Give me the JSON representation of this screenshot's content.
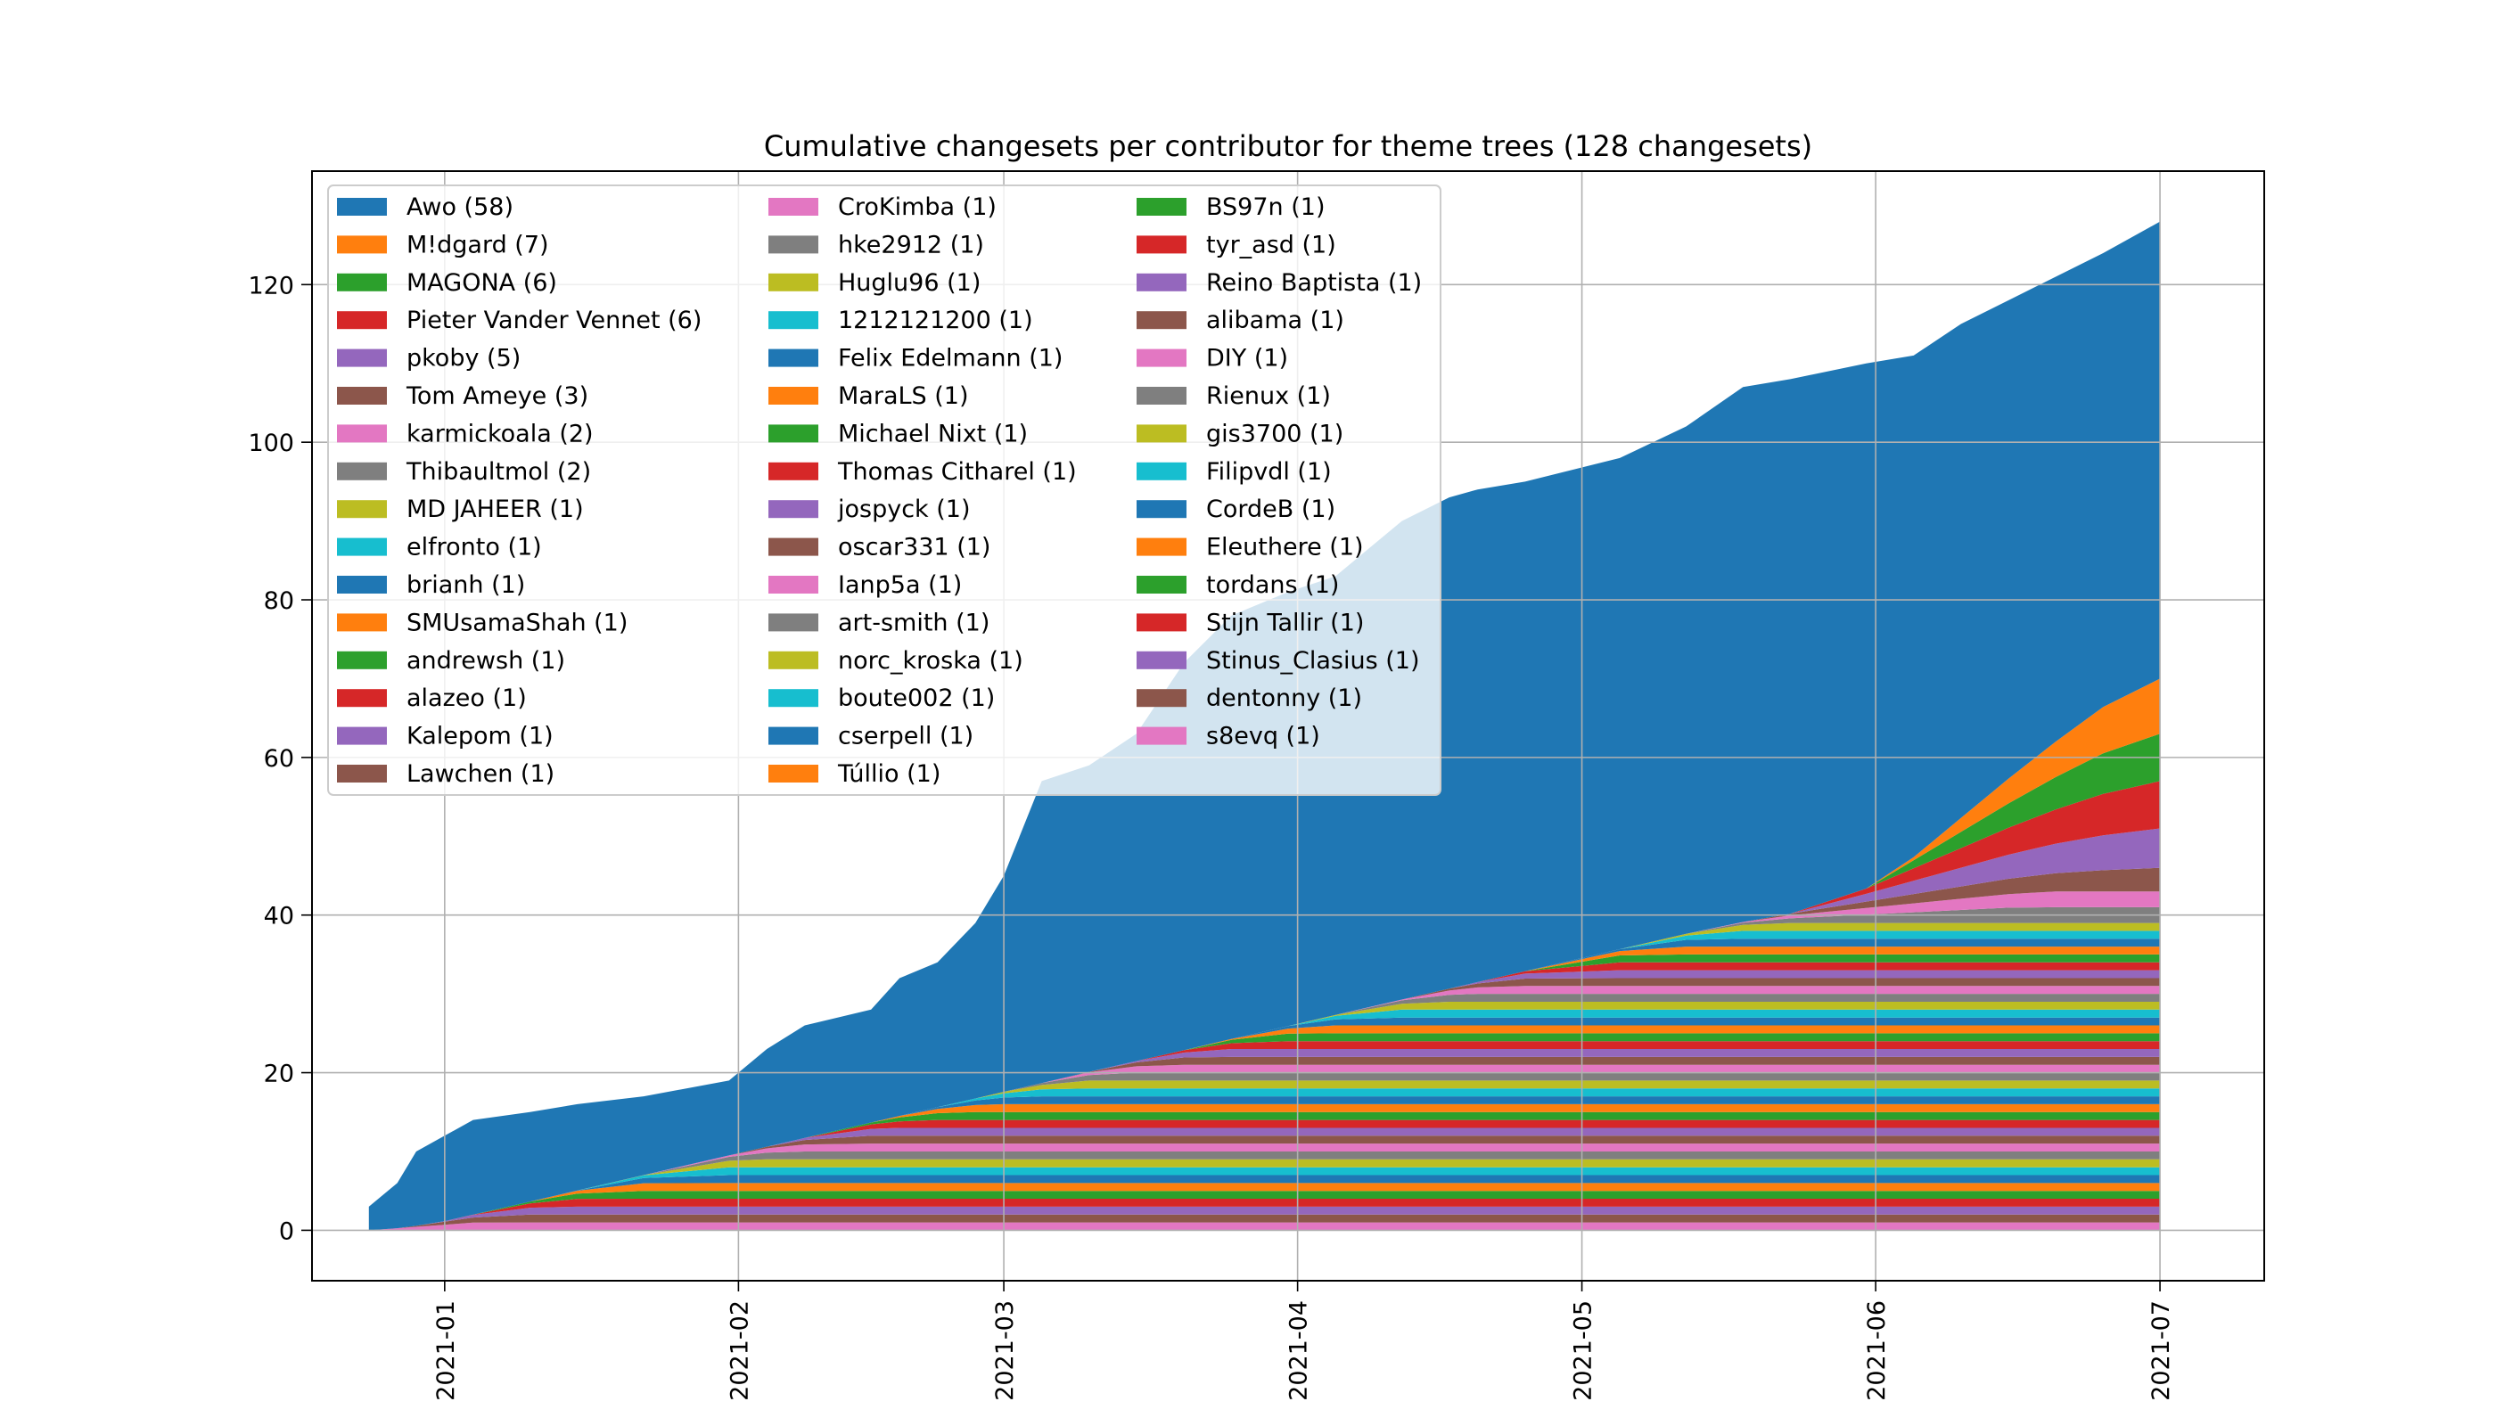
{
  "chart_data": {
    "type": "area",
    "stacked": true,
    "title": "Cumulative changesets per contributor for theme trees (128 changesets)",
    "xlabel": "",
    "ylabel": "",
    "x_range": [
      "2020-12-18",
      "2021-07-12"
    ],
    "ylim": [
      -6.4,
      134.4
    ],
    "x_ticks": [
      "2021-01",
      "2021-02",
      "2021-03",
      "2021-04",
      "2021-05",
      "2021-06",
      "2021-07"
    ],
    "y_ticks": [
      0,
      20,
      40,
      60,
      80,
      100,
      120
    ],
    "grid": true,
    "legend_position": "top-left",
    "legend_columns": 3,
    "x": [
      "2020-12-24",
      "2020-12-27",
      "2020-12-29",
      "2021-01-01",
      "2021-01-04",
      "2021-01-10",
      "2021-01-15",
      "2021-01-22",
      "2021-01-31",
      "2021-02-04",
      "2021-02-08",
      "2021-02-15",
      "2021-02-18",
      "2021-02-22",
      "2021-02-26",
      "2021-03-01",
      "2021-03-05",
      "2021-03-10",
      "2021-03-15",
      "2021-03-20",
      "2021-03-25",
      "2021-03-31",
      "2021-04-05",
      "2021-04-12",
      "2021-04-17",
      "2021-04-20",
      "2021-04-25",
      "2021-05-05",
      "2021-05-12",
      "2021-05-18",
      "2021-05-23",
      "2021-05-31",
      "2021-06-05",
      "2021-06-10",
      "2021-06-15",
      "2021-06-20",
      "2021-06-25",
      "2021-07-01"
    ],
    "top_series": {
      "name": "Awo (58)",
      "color": "#1f77b4",
      "cumulative_total": [
        3,
        6,
        10,
        12,
        14,
        15,
        16,
        17,
        19,
        23,
        26,
        28,
        32,
        34,
        39,
        45,
        57,
        59,
        63,
        72,
        78,
        81,
        83,
        90,
        93,
        94,
        95,
        98,
        102,
        107,
        108,
        110,
        111,
        115,
        118,
        121,
        124,
        128
      ]
    },
    "series": [
      {
        "name": "Awo (58)",
        "color": "#1f77b4"
      },
      {
        "name": "M!dgard (7)",
        "color": "#ff7f0e"
      },
      {
        "name": "MAGONA (6)",
        "color": "#2ca02c"
      },
      {
        "name": "Pieter Vander Vennet (6)",
        "color": "#d62728"
      },
      {
        "name": "pkoby (5)",
        "color": "#9467bd"
      },
      {
        "name": "Tom Ameye (3)",
        "color": "#8c564b"
      },
      {
        "name": "karmickoala (2)",
        "color": "#e377c2"
      },
      {
        "name": "Thibaultmol (2)",
        "color": "#7f7f7f"
      },
      {
        "name": "MD JAHEER (1)",
        "color": "#bcbd22"
      },
      {
        "name": "elfronto (1)",
        "color": "#17becf"
      },
      {
        "name": "brianh (1)",
        "color": "#1f77b4"
      },
      {
        "name": "SMUsamaShah (1)",
        "color": "#ff7f0e"
      },
      {
        "name": "andrewsh (1)",
        "color": "#2ca02c"
      },
      {
        "name": "alazeo (1)",
        "color": "#d62728"
      },
      {
        "name": "Kalepom (1)",
        "color": "#9467bd"
      },
      {
        "name": "Lawchen (1)",
        "color": "#8c564b"
      },
      {
        "name": "CroKimba (1)",
        "color": "#e377c2"
      },
      {
        "name": "hke2912 (1)",
        "color": "#7f7f7f"
      },
      {
        "name": "Huglu96 (1)",
        "color": "#bcbd22"
      },
      {
        "name": "1212121200 (1)",
        "color": "#17becf"
      },
      {
        "name": "Felix Edelmann (1)",
        "color": "#1f77b4"
      },
      {
        "name": "MaraLS (1)",
        "color": "#ff7f0e"
      },
      {
        "name": "Michael Nixt (1)",
        "color": "#2ca02c"
      },
      {
        "name": "Thomas Citharel (1)",
        "color": "#d62728"
      },
      {
        "name": "jospyck (1)",
        "color": "#9467bd"
      },
      {
        "name": "oscar331 (1)",
        "color": "#8c564b"
      },
      {
        "name": "Ianp5a (1)",
        "color": "#e377c2"
      },
      {
        "name": "art-smith (1)",
        "color": "#7f7f7f"
      },
      {
        "name": "norc_kroska (1)",
        "color": "#bcbd22"
      },
      {
        "name": "boute002 (1)",
        "color": "#17becf"
      },
      {
        "name": "cserpell (1)",
        "color": "#1f77b4"
      },
      {
        "name": "Túllio (1)",
        "color": "#ff7f0e"
      },
      {
        "name": "BS97n (1)",
        "color": "#2ca02c"
      },
      {
        "name": "tyr_asd (1)",
        "color": "#d62728"
      },
      {
        "name": "Reino Baptista (1)",
        "color": "#9467bd"
      },
      {
        "name": "alibama (1)",
        "color": "#8c564b"
      },
      {
        "name": "DIY (1)",
        "color": "#e377c2"
      },
      {
        "name": "Rienux (1)",
        "color": "#7f7f7f"
      },
      {
        "name": "gis3700 (1)",
        "color": "#bcbd22"
      },
      {
        "name": "Filipvdl (1)",
        "color": "#17becf"
      },
      {
        "name": "CordeB (1)",
        "color": "#1f77b4"
      },
      {
        "name": "Eleuthere (1)",
        "color": "#ff7f0e"
      },
      {
        "name": "tordans (1)",
        "color": "#2ca02c"
      },
      {
        "name": "Stijn Tallir (1)",
        "color": "#d62728"
      },
      {
        "name": "Stinus_Clasius (1)",
        "color": "#9467bd"
      },
      {
        "name": "dentonny (1)",
        "color": "#8c564b"
      },
      {
        "name": "s8evq (1)",
        "color": "#e377c2"
      }
    ]
  }
}
